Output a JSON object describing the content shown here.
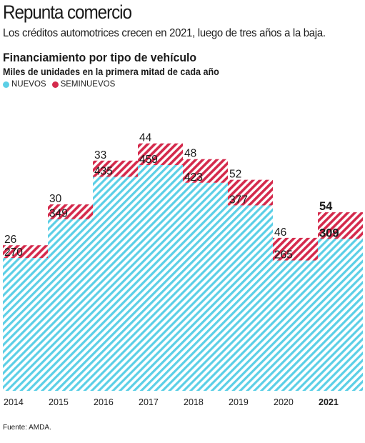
{
  "header": {
    "title": "Repunta comercio",
    "subtitle": "Los créditos automotrices crecen en 2021, luego de tres años a la baja."
  },
  "chart_data": {
    "type": "bar",
    "stacked": true,
    "title": "Financiamiento por tipo de vehículo",
    "subtitle": "Miles de unidades en la primera mitad de cada año",
    "categories": [
      "2014",
      "2015",
      "2016",
      "2017",
      "2018",
      "2019",
      "2020",
      "2021"
    ],
    "series": [
      {
        "name": "NUEVOS",
        "color": "#5ccfe6",
        "values": [
          270,
          349,
          435,
          459,
          423,
          377,
          265,
          309
        ]
      },
      {
        "name": "SEMINUEVOS",
        "color": "#d42a4c",
        "values": [
          26,
          30,
          33,
          44,
          48,
          52,
          46,
          54
        ]
      }
    ],
    "highlight_category": "2021",
    "xlabel": "",
    "ylabel": "",
    "ylim": [
      0,
      520
    ],
    "grid": false,
    "legend_position": "top-left"
  },
  "legend": {
    "nuevos_label": "NUEVOS",
    "seminuevos_label": "SEMINUEVOS"
  },
  "footer": {
    "source": "Fuente: AMDA."
  }
}
